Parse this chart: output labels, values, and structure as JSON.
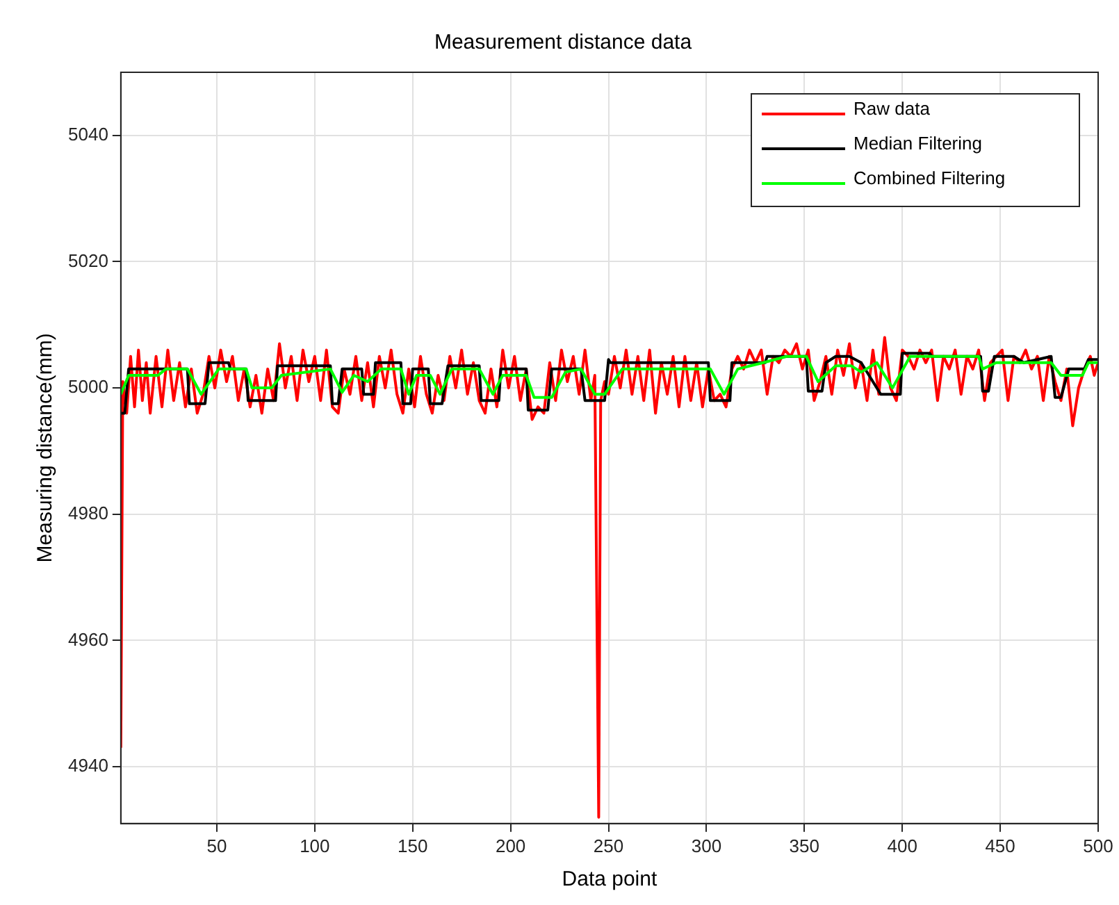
{
  "chart_data": {
    "type": "line",
    "title": "Measurement distance data",
    "xlabel": "Data point",
    "ylabel": "Measuring distance(mm)",
    "xlim": [
      1,
      500
    ],
    "xticks": [
      50,
      100,
      150,
      200,
      250,
      300,
      350,
      400,
      450,
      500
    ],
    "ylim": [
      4931,
      5050
    ],
    "yticks": [
      4940,
      4960,
      4980,
      5000,
      5020,
      5040
    ],
    "grid": true,
    "legend": "top right",
    "marker": "none",
    "line_style": "solid",
    "series": [
      {
        "name": "Raw data",
        "color": "#ff0000",
        "x": [
          1,
          2,
          4,
          6,
          8,
          10,
          12,
          14,
          16,
          19,
          22,
          25,
          28,
          31,
          34,
          37,
          40,
          43,
          46,
          49,
          52,
          55,
          58,
          61,
          64,
          67,
          70,
          73,
          76,
          79,
          82,
          85,
          88,
          91,
          94,
          97,
          100,
          103,
          106,
          109,
          112,
          115,
          118,
          121,
          124,
          127,
          130,
          133,
          136,
          139,
          142,
          145,
          148,
          151,
          154,
          157,
          160,
          163,
          166,
          169,
          172,
          175,
          178,
          181,
          184,
          187,
          190,
          193,
          196,
          199,
          202,
          205,
          208,
          211,
          214,
          217,
          220,
          223,
          226,
          229,
          232,
          235,
          238,
          241,
          243,
          245,
          246,
          248,
          250,
          253,
          256,
          259,
          262,
          265,
          268,
          271,
          274,
          277,
          280,
          283,
          286,
          289,
          292,
          295,
          298,
          301,
          304,
          307,
          310,
          313,
          316,
          319,
          322,
          325,
          328,
          331,
          334,
          337,
          340,
          343,
          346,
          349,
          352,
          355,
          358,
          361,
          364,
          367,
          370,
          373,
          376,
          379,
          382,
          385,
          388,
          391,
          394,
          397,
          400,
          403,
          406,
          409,
          412,
          415,
          418,
          421,
          424,
          427,
          430,
          433,
          436,
          439,
          442,
          445,
          448,
          451,
          454,
          457,
          460,
          463,
          466,
          469,
          472,
          475,
          478,
          481,
          484,
          487,
          490,
          493,
          496,
          498,
          500
        ],
        "values": [
          4943,
          5001,
          4996,
          5005,
          4997,
          5006,
          4998,
          5004,
          4996,
          5005,
          4997,
          5006,
          4998,
          5004,
          4997,
          5003,
          4996,
          4999,
          5005,
          5000,
          5006,
          5001,
          5005,
          4998,
          5003,
          4997,
          5002,
          4996,
          5003,
          4998,
          5007,
          5000,
          5005,
          4998,
          5006,
          5001,
          5005,
          4998,
          5006,
          4997,
          4996,
          5003,
          4999,
          5005,
          4998,
          5004,
          4997,
          5005,
          5000,
          5006,
          4999,
          4996,
          5003,
          4997,
          5005,
          4999,
          4996,
          5002,
          4998,
          5005,
          5000,
          5006,
          4999,
          5004,
          4998,
          4996,
          5003,
          4997,
          5006,
          5000,
          5005,
          4998,
          5003,
          4995,
          4997,
          4996,
          5004,
          4998,
          5006,
          5001,
          5005,
          4999,
          5006,
          4998,
          5002,
          4932,
          4998,
          5001,
          4999,
          5005,
          5000,
          5006,
          4999,
          5005,
          4998,
          5006,
          4996,
          5004,
          4999,
          5005,
          4997,
          5005,
          4998,
          5004,
          4997,
          5003,
          4998,
          4999,
          4997,
          5003,
          5005,
          5003,
          5006,
          5004,
          5006,
          4999,
          5005,
          5004,
          5006,
          5005,
          5007,
          5003,
          5006,
          4998,
          5001,
          5005,
          4999,
          5006,
          5002,
          5007,
          5000,
          5004,
          4998,
          5006,
          4999,
          5008,
          5000,
          4998,
          5006,
          5005,
          5003,
          5006,
          5004,
          5006,
          4998,
          5005,
          5003,
          5006,
          4999,
          5005,
          5003,
          5006,
          4998,
          5004,
          5005,
          5006,
          4998,
          5005,
          5004,
          5006,
          5003,
          5005,
          4998,
          5005,
          5001,
          4998,
          5003,
          4994,
          5000,
          5003,
          5005,
          5002,
          5004
        ]
      },
      {
        "name": "Median Filtering",
        "color": "#000000",
        "x": [
          1,
          3,
          5,
          35,
          36,
          44,
          46,
          56,
          57,
          65,
          66,
          80,
          81,
          108,
          109,
          112,
          114,
          117,
          124,
          125,
          130,
          131,
          144,
          145,
          149,
          150,
          158,
          159,
          165,
          168,
          184,
          185,
          194,
          195,
          208,
          209,
          219,
          221,
          236,
          238,
          248,
          250,
          251,
          301,
          302,
          312,
          313,
          330,
          331,
          351,
          352,
          359,
          361,
          366,
          373,
          379,
          389,
          399,
          400,
          414,
          415,
          440,
          441,
          444,
          447,
          457,
          462,
          476,
          478,
          481,
          485,
          493,
          495,
          500
        ],
        "values": [
          4996,
          4996,
          5003,
          5003,
          4997.5,
          4997.5,
          5004,
          5004,
          5003,
          5003,
          4998,
          4998,
          5003.5,
          5003.5,
          4997.5,
          4997.5,
          5003,
          5003,
          5003,
          4999,
          4999,
          5004,
          5004,
          4997.5,
          4997.5,
          5003,
          5003,
          4997.5,
          4997.5,
          5003.5,
          5003.5,
          4998,
          4998,
          5003,
          5003,
          4996.5,
          4996.5,
          5003,
          5003,
          4998,
          4998,
          5004.5,
          5004,
          5004,
          4998,
          4998,
          5004,
          5004,
          5005,
          5005,
          4999.5,
          4999.5,
          5004,
          5005,
          5005,
          5004,
          4999,
          4999,
          5005.5,
          5005.5,
          5005,
          5005,
          4999.5,
          4999.5,
          5005,
          5005,
          5004,
          5005,
          4998.5,
          4998.5,
          5003,
          5003,
          5004.5,
          5004.5
        ]
      },
      {
        "name": "Combined Filtering",
        "color": "#00ff00",
        "x": [
          1,
          5,
          20,
          24,
          35,
          42,
          51,
          65,
          68,
          78,
          83,
          108,
          114,
          120,
          127,
          134,
          144,
          148,
          152,
          159,
          164,
          170,
          184,
          191,
          196,
          208,
          212,
          221,
          228,
          236,
          243,
          248,
          257,
          302,
          309,
          316,
          329,
          341,
          351,
          357,
          366,
          374,
          379,
          387,
          395,
          404,
          439,
          441,
          448,
          476,
          481,
          492,
          495,
          500
        ],
        "values": [
          4999,
          5002,
          5002,
          5003,
          5003,
          4999,
          5003,
          5003,
          5000,
          5000,
          5002,
          5003,
          4999.3,
          5002,
          5001,
          5003,
          5003,
          4999,
          5002,
          5002,
          4999,
          5003,
          5003,
          4999,
          5002,
          5002,
          4998.5,
          4998.5,
          5002.5,
          5003,
          4999,
          4999,
          5003,
          5003,
          4999,
          5003,
          5004,
          5005,
          5005,
          5001,
          5003.5,
          5003.5,
          5002.5,
          5004,
          5000,
          5005,
          5005,
          5003,
          5004,
          5004,
          5002,
          5002,
          5004,
          5004
        ]
      }
    ]
  }
}
